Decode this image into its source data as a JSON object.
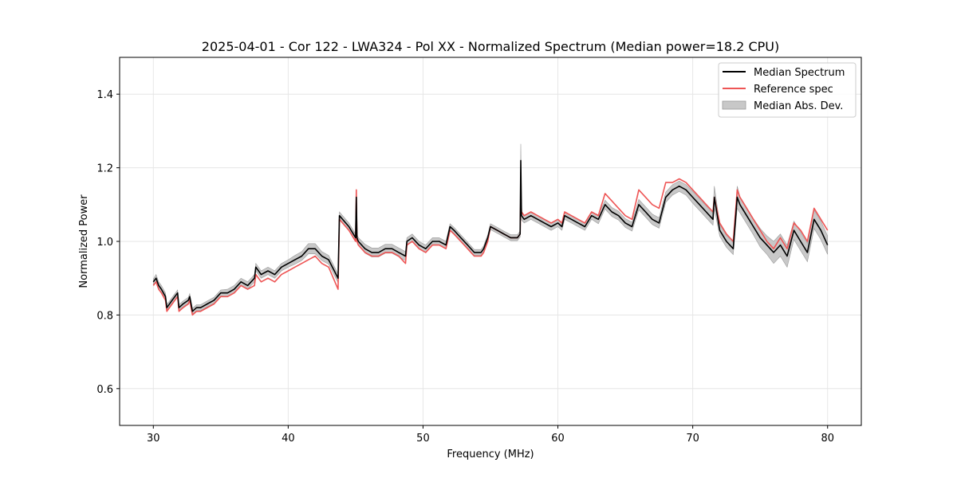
{
  "chart_data": {
    "type": "line",
    "title": "2025-04-01 - Cor 122 - LWA324 - Pol XX - Normalized Spectrum (Median power=18.2 CPU)",
    "xlabel": "Frequency (MHz)",
    "ylabel": "Normalized Power",
    "xlim": [
      27.5,
      82.5
    ],
    "ylim": [
      0.5,
      1.5
    ],
    "xticks": [
      30,
      40,
      50,
      60,
      70,
      80
    ],
    "yticks": [
      0.6,
      0.8,
      1.0,
      1.2,
      1.4
    ],
    "xtick_labels": [
      "30",
      "40",
      "50",
      "60",
      "70",
      "80"
    ],
    "ytick_labels": [
      "0.6",
      "0.8",
      "1.0",
      "1.2",
      "1.4"
    ],
    "grid": true,
    "legend_position": "top-right",
    "legend": [
      {
        "label": "Median Spectrum",
        "kind": "line",
        "color": "#000000"
      },
      {
        "label": "Reference spec",
        "kind": "line",
        "color": "#ee5555"
      },
      {
        "label": "Median Abs. Dev.",
        "kind": "band",
        "color": "#c8c8c8"
      }
    ],
    "series": [
      {
        "name": "Median Spectrum",
        "color": "#000000",
        "x": [
          30.0,
          30.2,
          30.4,
          30.6,
          30.9,
          31.0,
          31.4,
          31.8,
          31.9,
          32.2,
          32.6,
          32.7,
          32.9,
          33.2,
          33.5,
          34.0,
          34.5,
          35.0,
          35.5,
          36.0,
          36.5,
          37.0,
          37.5,
          37.6,
          38.0,
          38.5,
          39.0,
          39.5,
          40.0,
          40.5,
          41.0,
          41.5,
          42.0,
          42.5,
          43.0,
          43.7,
          43.8,
          44.5,
          45.0,
          45.05,
          45.1,
          45.2,
          45.7,
          46.2,
          46.7,
          47.2,
          47.7,
          48.2,
          48.7,
          48.8,
          49.2,
          49.7,
          50.2,
          50.7,
          51.2,
          51.7,
          52.0,
          52.3,
          52.8,
          53.3,
          53.8,
          54.3,
          54.5,
          54.8,
          55.0,
          55.5,
          56.0,
          56.5,
          57.0,
          57.2,
          57.25,
          57.3,
          57.5,
          58.0,
          58.5,
          59.0,
          59.5,
          60.0,
          60.3,
          60.5,
          61.0,
          61.5,
          62.0,
          62.5,
          63.0,
          63.5,
          64.0,
          64.5,
          65.0,
          65.5,
          66.0,
          66.5,
          67.0,
          67.5,
          68.0,
          68.5,
          69.0,
          69.5,
          70.0,
          70.5,
          71.0,
          71.5,
          71.6,
          72.0,
          72.5,
          73.0,
          73.3,
          73.5,
          74.0,
          74.5,
          75.0,
          75.5,
          76.0,
          76.5,
          77.0,
          77.5,
          78.0,
          78.5,
          79.0,
          79.5,
          80.0
        ],
        "values": [
          0.89,
          0.9,
          0.88,
          0.87,
          0.85,
          0.82,
          0.84,
          0.86,
          0.82,
          0.83,
          0.84,
          0.85,
          0.81,
          0.82,
          0.82,
          0.83,
          0.84,
          0.86,
          0.86,
          0.87,
          0.89,
          0.88,
          0.9,
          0.93,
          0.91,
          0.92,
          0.91,
          0.93,
          0.94,
          0.95,
          0.96,
          0.98,
          0.98,
          0.96,
          0.95,
          0.9,
          1.07,
          1.04,
          1.01,
          1.12,
          1.01,
          1.0,
          0.98,
          0.97,
          0.97,
          0.98,
          0.98,
          0.97,
          0.96,
          1.0,
          1.01,
          0.99,
          0.98,
          1.0,
          1.0,
          0.99,
          1.04,
          1.03,
          1.01,
          0.99,
          0.97,
          0.97,
          0.98,
          1.01,
          1.04,
          1.03,
          1.02,
          1.01,
          1.01,
          1.02,
          1.22,
          1.07,
          1.06,
          1.07,
          1.06,
          1.05,
          1.04,
          1.05,
          1.04,
          1.07,
          1.06,
          1.05,
          1.04,
          1.07,
          1.06,
          1.1,
          1.08,
          1.07,
          1.05,
          1.04,
          1.1,
          1.08,
          1.06,
          1.05,
          1.12,
          1.14,
          1.15,
          1.14,
          1.12,
          1.1,
          1.08,
          1.06,
          1.12,
          1.03,
          1.0,
          0.98,
          1.12,
          1.1,
          1.07,
          1.04,
          1.01,
          0.99,
          0.97,
          0.99,
          0.96,
          1.03,
          1.0,
          0.97,
          1.06,
          1.03,
          0.99
        ]
      },
      {
        "name": "Reference spec",
        "color": "#ee5555",
        "x": [
          30.0,
          30.2,
          30.4,
          30.6,
          30.9,
          31.0,
          31.4,
          31.8,
          31.9,
          32.2,
          32.6,
          32.7,
          32.9,
          33.2,
          33.5,
          34.0,
          34.5,
          35.0,
          35.5,
          36.0,
          36.5,
          37.0,
          37.5,
          37.6,
          38.0,
          38.5,
          39.0,
          39.5,
          40.0,
          40.5,
          41.0,
          41.5,
          42.0,
          42.5,
          43.0,
          43.7,
          43.8,
          44.5,
          45.0,
          45.05,
          45.1,
          45.2,
          45.7,
          46.2,
          46.7,
          47.2,
          47.7,
          48.2,
          48.7,
          48.8,
          49.2,
          49.7,
          50.2,
          50.7,
          51.2,
          51.7,
          52.0,
          52.3,
          52.8,
          53.3,
          53.8,
          54.3,
          54.5,
          54.8,
          55.0,
          55.5,
          56.0,
          56.5,
          57.0,
          57.2,
          57.25,
          57.3,
          57.5,
          58.0,
          58.5,
          59.0,
          59.5,
          60.0,
          60.3,
          60.5,
          61.0,
          61.5,
          62.0,
          62.5,
          63.0,
          63.5,
          64.0,
          64.5,
          65.0,
          65.5,
          66.0,
          66.5,
          67.0,
          67.5,
          68.0,
          68.5,
          69.0,
          69.5,
          70.0,
          70.5,
          71.0,
          71.5,
          71.6,
          72.0,
          72.5,
          73.0,
          73.3,
          73.5,
          74.0,
          74.5,
          75.0,
          75.5,
          76.0,
          76.5,
          77.0,
          77.5,
          78.0,
          78.5,
          79.0,
          79.5,
          80.0
        ],
        "values": [
          0.88,
          0.89,
          0.87,
          0.86,
          0.84,
          0.81,
          0.83,
          0.85,
          0.81,
          0.82,
          0.83,
          0.84,
          0.8,
          0.81,
          0.81,
          0.82,
          0.83,
          0.85,
          0.85,
          0.86,
          0.88,
          0.87,
          0.88,
          0.91,
          0.89,
          0.9,
          0.89,
          0.91,
          0.92,
          0.93,
          0.94,
          0.95,
          0.96,
          0.94,
          0.93,
          0.87,
          1.06,
          1.03,
          1.0,
          1.14,
          1.0,
          0.99,
          0.97,
          0.96,
          0.96,
          0.97,
          0.97,
          0.96,
          0.94,
          0.99,
          1.0,
          0.98,
          0.97,
          0.99,
          0.99,
          0.98,
          1.03,
          1.02,
          1.0,
          0.98,
          0.96,
          0.96,
          0.97,
          1.0,
          1.04,
          1.03,
          1.02,
          1.01,
          1.01,
          1.02,
          1.13,
          1.08,
          1.07,
          1.08,
          1.07,
          1.06,
          1.05,
          1.06,
          1.05,
          1.08,
          1.07,
          1.06,
          1.05,
          1.08,
          1.07,
          1.13,
          1.11,
          1.09,
          1.07,
          1.06,
          1.14,
          1.12,
          1.1,
          1.09,
          1.16,
          1.16,
          1.17,
          1.16,
          1.14,
          1.12,
          1.1,
          1.08,
          1.12,
          1.05,
          1.02,
          1.0,
          1.14,
          1.12,
          1.09,
          1.06,
          1.03,
          1.0,
          0.98,
          1.01,
          0.98,
          1.05,
          1.03,
          1.0,
          1.09,
          1.06,
          1.03
        ]
      }
    ],
    "band": {
      "name": "Median Abs. Dev.",
      "color": "#c8c8c8",
      "half_width": [
        0.008,
        0.01,
        0.01,
        0.01,
        0.01,
        0.008,
        0.008,
        0.008,
        0.008,
        0.008,
        0.008,
        0.008,
        0.008,
        0.008,
        0.008,
        0.008,
        0.008,
        0.008,
        0.01,
        0.01,
        0.01,
        0.01,
        0.01,
        0.01,
        0.01,
        0.01,
        0.01,
        0.01,
        0.01,
        0.012,
        0.012,
        0.014,
        0.014,
        0.012,
        0.012,
        0.012,
        0.01,
        0.01,
        0.01,
        0.01,
        0.01,
        0.01,
        0.012,
        0.012,
        0.012,
        0.012,
        0.012,
        0.012,
        0.012,
        0.01,
        0.01,
        0.01,
        0.01,
        0.01,
        0.01,
        0.01,
        0.008,
        0.008,
        0.008,
        0.008,
        0.008,
        0.008,
        0.008,
        0.008,
        0.008,
        0.008,
        0.008,
        0.008,
        0.008,
        0.008,
        0.045,
        0.012,
        0.01,
        0.01,
        0.01,
        0.01,
        0.01,
        0.01,
        0.01,
        0.01,
        0.01,
        0.01,
        0.01,
        0.01,
        0.012,
        0.012,
        0.012,
        0.012,
        0.012,
        0.012,
        0.014,
        0.014,
        0.014,
        0.014,
        0.014,
        0.014,
        0.014,
        0.014,
        0.016,
        0.016,
        0.016,
        0.016,
        0.03,
        0.016,
        0.016,
        0.016,
        0.03,
        0.022,
        0.022,
        0.022,
        0.025,
        0.025,
        0.03,
        0.03,
        0.03,
        0.025,
        0.025,
        0.025,
        0.025,
        0.025,
        0.025
      ]
    }
  }
}
